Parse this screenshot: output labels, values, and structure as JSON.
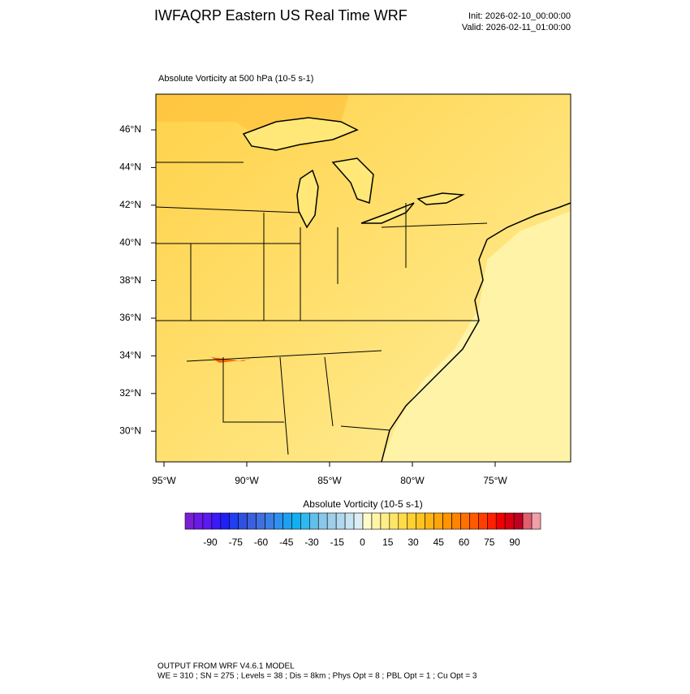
{
  "header": {
    "title": "IWFAQRP Eastern US Real Time WRF",
    "init": "Init: 2026-02-10_00:00:00",
    "valid": "Valid: 2026-02-11_01:00:00"
  },
  "map": {
    "field_label": "Absolute Vorticity at 500 hPa   (10-5 s-1)",
    "lat_labels": [
      "46°N",
      "44°N",
      "42°N",
      "40°N",
      "38°N",
      "36°N",
      "34°N",
      "32°N",
      "30°N"
    ],
    "lon_labels": [
      "95°W",
      "90°W",
      "85°W",
      "80°W",
      "75°W"
    ]
  },
  "colorbar": {
    "title": "Absolute Vorticity  (10-5 s-1)",
    "ticks": [
      -90,
      -75,
      -60,
      -45,
      -30,
      -15,
      0,
      15,
      30,
      45,
      60,
      75,
      90
    ],
    "colors": [
      "#7a1fd6",
      "#6a1ae6",
      "#5a1af0",
      "#3a1af5",
      "#1f1ff5",
      "#1f3ff0",
      "#3050e0",
      "#3a60dd",
      "#4070e0",
      "#3a80e6",
      "#2e90f0",
      "#1ea0f0",
      "#10b0f0",
      "#30b8f0",
      "#60c0ec",
      "#88c8ea",
      "#a0cfe8",
      "#b0d8ee",
      "#c8e4f0",
      "#dceef4",
      "#fffbc8",
      "#fff5a8",
      "#ffee88",
      "#ffe566",
      "#ffdc4a",
      "#ffd030",
      "#ffc420",
      "#ffb414",
      "#ffa40a",
      "#ff9400",
      "#ff8400",
      "#ff7000",
      "#ff5a00",
      "#ff3e00",
      "#ff2000",
      "#f00000",
      "#d80010",
      "#c00020",
      "#e06070",
      "#f0a0a8"
    ]
  },
  "footer": {
    "line1": "OUTPUT FROM WRF V4.6.1 MODEL",
    "line2": "WE = 310 ; SN = 275 ; Levels = 38 ; Dis = 8km ; Phys Opt = 8 ; PBL Opt = 1 ; Cu Opt = 3"
  }
}
